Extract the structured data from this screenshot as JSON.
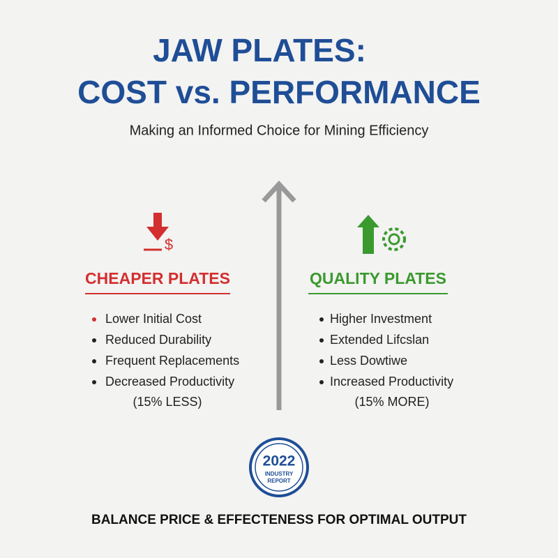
{
  "header": {
    "title_line1": "JAW PLATES:",
    "title_line2": "COST vs. PERFORMANCE",
    "subtitle": "Making an Informed Choice for Mining Efficiency"
  },
  "left": {
    "heading": "CHEAPER PLATES",
    "items": [
      "Lower Initial Cost",
      "Reduced Durability",
      "Frequent Replacements",
      "Decreased Productivity"
    ],
    "note": "(15% LESS)"
  },
  "right": {
    "heading": "QUALITY PLATES",
    "items": [
      "Higher Investment",
      "Extended Lifcslan",
      "Less Dowtiwe",
      "Increased Productivity"
    ],
    "note": "(15% MORE)"
  },
  "badge": {
    "year": "2022",
    "line1": "INDUSTRY",
    "line2": "REPORT"
  },
  "footer": "BALANCE PRICE & EFFECTENESS FOR OPTIMAL OUTPUT"
}
